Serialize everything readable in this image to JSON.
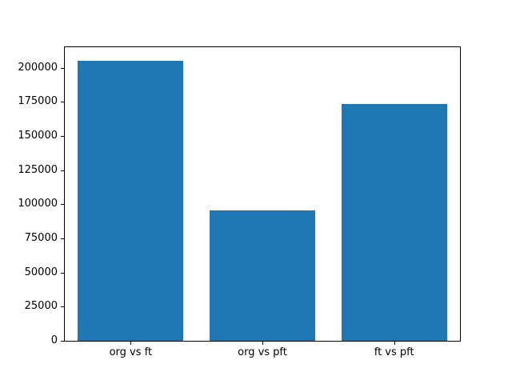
{
  "chart_data": {
    "type": "bar",
    "title": "",
    "xlabel": "",
    "ylabel": "",
    "categories": [
      "org vs ft",
      "org vs pft",
      "ft vs pft"
    ],
    "values": [
      204800,
      95300,
      173400
    ],
    "ylim": [
      0,
      215000
    ],
    "yticks": [
      0,
      25000,
      50000,
      75000,
      100000,
      125000,
      150000,
      175000,
      200000
    ],
    "ytick_labels": [
      "0",
      "25000",
      "50000",
      "75000",
      "100000",
      "125000",
      "150000",
      "175000",
      "200000"
    ],
    "bar_color": "#1f77b4",
    "axes_edge_color": "#000000",
    "background_color": "#ffffff",
    "grid": false,
    "legend": null
  }
}
